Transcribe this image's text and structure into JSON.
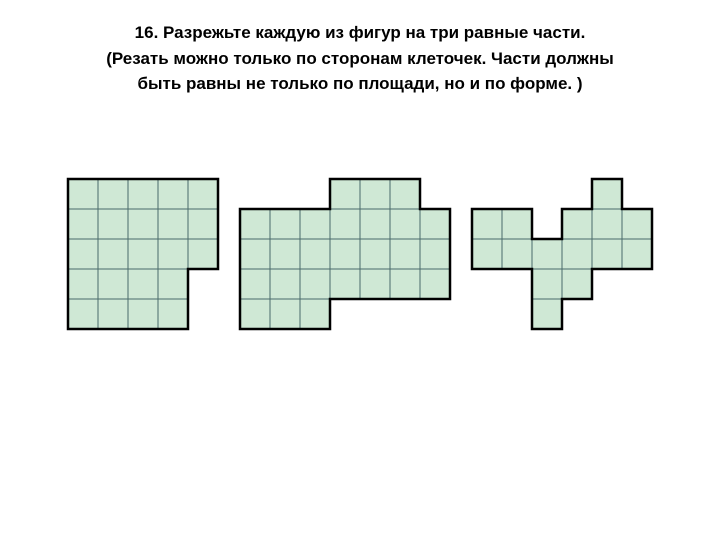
{
  "header": {
    "line1": "16. Разрежьте каждую из фигур на три равные части.",
    "line2": "(Резать можно только по сторонам клеточек. Части должны",
    "line3": "быть равны не только по площади, но и по форме. )"
  },
  "style": {
    "cell_size": 30,
    "cell_fill": "#cfe8d5",
    "cell_stroke": "#4a6a6a",
    "cell_stroke_width": 1,
    "outline_stroke": "#000000",
    "outline_stroke_width": 2.5,
    "background": "#ffffff"
  },
  "figures": [
    {
      "id": "fig1",
      "cells": [
        [
          0,
          0
        ],
        [
          1,
          0
        ],
        [
          2,
          0
        ],
        [
          3,
          0
        ],
        [
          4,
          0
        ],
        [
          0,
          1
        ],
        [
          1,
          1
        ],
        [
          2,
          1
        ],
        [
          3,
          1
        ],
        [
          4,
          1
        ],
        [
          0,
          2
        ],
        [
          1,
          2
        ],
        [
          2,
          2
        ],
        [
          3,
          2
        ],
        [
          4,
          2
        ],
        [
          0,
          3
        ],
        [
          1,
          3
        ],
        [
          2,
          3
        ],
        [
          3,
          3
        ],
        [
          0,
          4
        ],
        [
          1,
          4
        ],
        [
          2,
          4
        ],
        [
          3,
          4
        ]
      ],
      "outline": [
        [
          0,
          0
        ],
        [
          5,
          0
        ],
        [
          5,
          3
        ],
        [
          4,
          3
        ],
        [
          4,
          5
        ],
        [
          0,
          5
        ]
      ]
    },
    {
      "id": "fig2",
      "cells": [
        [
          3,
          0
        ],
        [
          4,
          0
        ],
        [
          5,
          0
        ],
        [
          0,
          1
        ],
        [
          1,
          1
        ],
        [
          2,
          1
        ],
        [
          3,
          1
        ],
        [
          4,
          1
        ],
        [
          5,
          1
        ],
        [
          6,
          1
        ],
        [
          0,
          2
        ],
        [
          1,
          2
        ],
        [
          2,
          2
        ],
        [
          3,
          2
        ],
        [
          4,
          2
        ],
        [
          5,
          2
        ],
        [
          6,
          2
        ],
        [
          0,
          3
        ],
        [
          1,
          3
        ],
        [
          2,
          3
        ],
        [
          3,
          3
        ],
        [
          4,
          3
        ],
        [
          5,
          3
        ],
        [
          6,
          3
        ],
        [
          0,
          4
        ],
        [
          1,
          4
        ],
        [
          2,
          4
        ]
      ],
      "outline": [
        [
          3,
          0
        ],
        [
          6,
          0
        ],
        [
          6,
          1
        ],
        [
          7,
          1
        ],
        [
          7,
          4
        ],
        [
          3,
          4
        ],
        [
          3,
          5
        ],
        [
          0,
          5
        ],
        [
          0,
          1
        ],
        [
          3,
          1
        ]
      ]
    },
    {
      "id": "fig3",
      "cells": [
        [
          4,
          0
        ],
        [
          0,
          1
        ],
        [
          1,
          1
        ],
        [
          3,
          1
        ],
        [
          4,
          1
        ],
        [
          5,
          1
        ],
        [
          0,
          2
        ],
        [
          1,
          2
        ],
        [
          2,
          2
        ],
        [
          3,
          2
        ],
        [
          4,
          2
        ],
        [
          5,
          2
        ],
        [
          2,
          3
        ],
        [
          3,
          3
        ],
        [
          2,
          4
        ]
      ],
      "outline": [
        [
          4,
          0
        ],
        [
          5,
          0
        ],
        [
          5,
          1
        ],
        [
          6,
          1
        ],
        [
          6,
          3
        ],
        [
          4,
          3
        ],
        [
          4,
          4
        ],
        [
          3,
          4
        ],
        [
          3,
          5
        ],
        [
          2,
          5
        ],
        [
          2,
          3
        ],
        [
          0,
          3
        ],
        [
          0,
          1
        ],
        [
          2,
          1
        ],
        [
          2,
          2
        ],
        [
          3,
          2
        ],
        [
          3,
          1
        ],
        [
          4,
          1
        ]
      ]
    }
  ]
}
